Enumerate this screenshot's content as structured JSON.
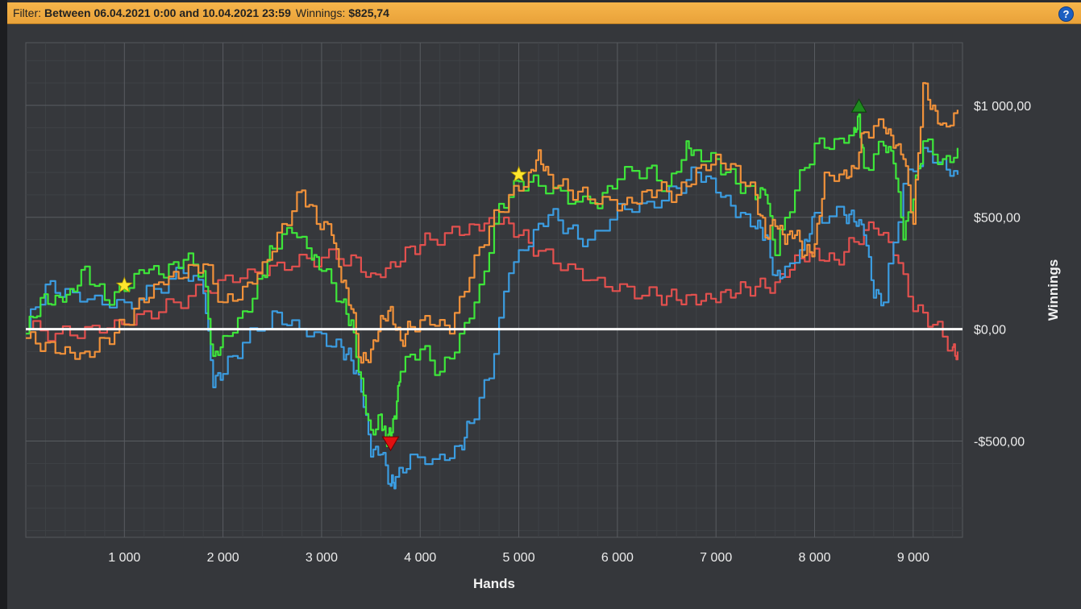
{
  "filter": {
    "label": "Filter:",
    "value": "Between 06.04.2021 0:00 and 10.04.2021 23:59",
    "winnings_label": "Winnings:",
    "winnings_value": "$825,74",
    "help_icon": "?"
  },
  "colors": {
    "bar": "#f0ad44",
    "blue": "#3b9ce0",
    "green": "#3ee63a",
    "orange": "#f0913a",
    "red": "#e2504e",
    "zero_line": "#ffffff"
  },
  "chart_data": {
    "type": "line",
    "title": "",
    "xlabel": "Hands",
    "ylabel": "Winnings",
    "xlim": [
      0,
      9500
    ],
    "ylim": [
      -930,
      1280
    ],
    "x_ticks": [
      1000,
      2000,
      3000,
      4000,
      5000,
      6000,
      7000,
      8000,
      9000
    ],
    "x_tick_labels": [
      "1 000",
      "2 000",
      "3 000",
      "4 000",
      "5 000",
      "6 000",
      "7 000",
      "8 000",
      "9 000"
    ],
    "y_ticks": [
      1000,
      500,
      0,
      -500
    ],
    "y_tick_labels": [
      "$1 000,00",
      "$500,00",
      "$0,00",
      "-$500,00"
    ],
    "grid": true,
    "series": [
      {
        "color": "#e2504e",
        "x": [
          0,
          300,
          600,
          900,
          1200,
          1500,
          1800,
          2100,
          2400,
          2700,
          3000,
          3300,
          3500,
          3700,
          3900,
          4100,
          4400,
          4600,
          4800,
          5000,
          5200,
          5500,
          5800,
          6100,
          6400,
          6600,
          6800,
          7000,
          7200,
          7400,
          7600,
          7800,
          8000,
          8200,
          8400,
          8600,
          8800,
          9000,
          9200,
          9400,
          9450
        ],
        "y": [
          0,
          -20,
          10,
          40,
          80,
          120,
          170,
          210,
          240,
          280,
          320,
          330,
          250,
          300,
          370,
          400,
          420,
          440,
          470,
          420,
          350,
          290,
          230,
          190,
          150,
          130,
          110,
          120,
          160,
          190,
          210,
          330,
          360,
          310,
          390,
          450,
          330,
          80,
          20,
          -80,
          -100
        ]
      },
      {
        "color": "#3b9ce0",
        "x": [
          0,
          200,
          400,
          700,
          1000,
          1300,
          1600,
          1800,
          1900,
          2000,
          2200,
          2500,
          2700,
          3000,
          3200,
          3300,
          3400,
          3500,
          3600,
          3700,
          3750,
          3900,
          4200,
          4400,
          4500,
          4700,
          4900,
          5100,
          5300,
          5500,
          5700,
          6000,
          6300,
          6600,
          6800,
          7000,
          7200,
          7400,
          7500,
          7600,
          7700,
          7900,
          8000,
          8300,
          8400,
          8500,
          8600,
          8700,
          8900,
          9100,
          9300,
          9450
        ],
        "y": [
          0,
          200,
          180,
          150,
          120,
          180,
          250,
          160,
          -260,
          -200,
          -60,
          80,
          40,
          -20,
          -80,
          -140,
          -280,
          -570,
          -560,
          -700,
          -660,
          -560,
          -560,
          -520,
          -420,
          -220,
          250,
          370,
          510,
          450,
          400,
          560,
          570,
          630,
          700,
          610,
          500,
          450,
          420,
          240,
          280,
          400,
          520,
          510,
          480,
          420,
          140,
          120,
          650,
          810,
          760,
          690
        ]
      },
      {
        "color": "#3ee63a",
        "x": [
          0,
          150,
          300,
          450,
          600,
          800,
          1000,
          1200,
          1400,
          1600,
          1800,
          1900,
          2000,
          2200,
          2400,
          2500,
          2700,
          2900,
          3000,
          3200,
          3300,
          3400,
          3500,
          3600,
          3650,
          3700,
          3750,
          3800,
          4000,
          4200,
          4400,
          4600,
          4800,
          5000,
          5200,
          5500,
          5800,
          6000,
          6300,
          6500,
          6700,
          6800,
          7000,
          7200,
          7400,
          7500,
          7600,
          7800,
          8000,
          8200,
          8400,
          8450,
          8500,
          8700,
          8800,
          8900,
          9000,
          9100,
          9300,
          9450
        ],
        "y": [
          -20,
          140,
          150,
          180,
          280,
          130,
          170,
          250,
          230,
          310,
          260,
          -120,
          -30,
          80,
          240,
          360,
          430,
          310,
          260,
          120,
          40,
          -220,
          -450,
          -380,
          -500,
          -480,
          -400,
          -190,
          -90,
          -190,
          -20,
          200,
          560,
          660,
          640,
          560,
          540,
          670,
          720,
          640,
          840,
          800,
          760,
          650,
          580,
          600,
          330,
          620,
          830,
          850,
          900,
          960,
          720,
          820,
          740,
          400,
          580,
          840,
          760,
          810
        ]
      },
      {
        "color": "#f0913a",
        "x": [
          0,
          200,
          400,
          600,
          800,
          1000,
          1200,
          1400,
          1600,
          1800,
          2000,
          2200,
          2400,
          2600,
          2800,
          2950,
          3100,
          3200,
          3300,
          3400,
          3500,
          3600,
          3700,
          3800,
          3900,
          4100,
          4300,
          4500,
          4700,
          4900,
          5100,
          5200,
          5300,
          5500,
          5700,
          6000,
          6200,
          6400,
          6600,
          6800,
          7000,
          7200,
          7400,
          7500,
          7600,
          7700,
          7800,
          7900,
          8000,
          8100,
          8300,
          8400,
          8500,
          8700,
          8800,
          8900,
          9000,
          9100,
          9200,
          9300,
          9450
        ],
        "y": [
          -40,
          -60,
          -80,
          -100,
          -40,
          20,
          120,
          200,
          230,
          290,
          120,
          190,
          300,
          470,
          620,
          470,
          420,
          210,
          90,
          -150,
          -90,
          60,
          100,
          -50,
          10,
          20,
          -20,
          230,
          460,
          600,
          700,
          800,
          690,
          620,
          580,
          530,
          560,
          620,
          600,
          720,
          780,
          730,
          600,
          410,
          460,
          380,
          420,
          330,
          380,
          700,
          710,
          720,
          880,
          900,
          810,
          760,
          470,
          1100,
          1000,
          920,
          980
        ]
      }
    ],
    "markers": [
      {
        "type": "star",
        "x": 1000,
        "y": 195
      },
      {
        "type": "star",
        "x": 5000,
        "y": 690
      },
      {
        "type": "triangle-down",
        "x": 3700,
        "y": -510
      },
      {
        "type": "triangle-up",
        "x": 8450,
        "y": 995
      }
    ]
  }
}
